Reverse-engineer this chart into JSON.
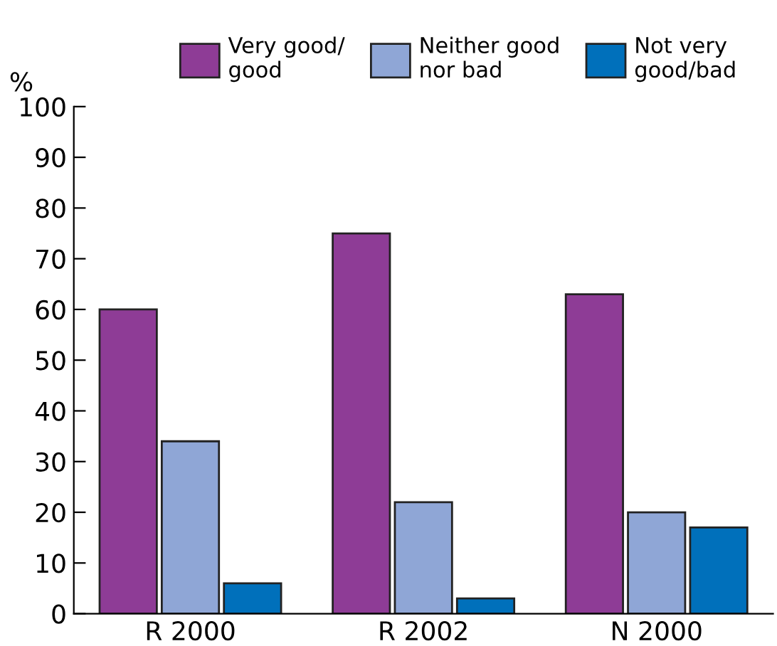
{
  "chart_data": {
    "type": "bar",
    "ylabel": "%",
    "categories": [
      "R 2000",
      "R 2002",
      "N 2000"
    ],
    "series": [
      {
        "name": "Very good/\ngood",
        "color": "#8e3c96",
        "values": [
          60,
          75,
          63
        ]
      },
      {
        "name": "Neither good\nnor bad",
        "color": "#8fa6d6",
        "values": [
          34,
          22,
          20
        ]
      },
      {
        "name": "Not very\ngood/bad",
        "color": "#0070bb",
        "values": [
          6,
          3,
          17
        ]
      }
    ],
    "ylim": [
      0,
      100
    ],
    "yticks": [
      0,
      10,
      20,
      30,
      40,
      50,
      60,
      70,
      80,
      90,
      100
    ],
    "grid": false,
    "legend": "top"
  }
}
